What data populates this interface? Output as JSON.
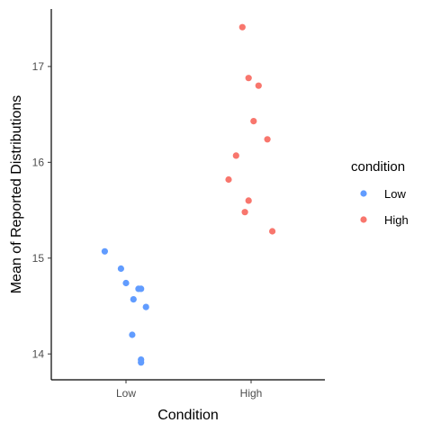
{
  "chart_data": {
    "type": "scatter",
    "xlabel": "Condition",
    "ylabel": "Mean of Reported Distributions",
    "categories": [
      "Low",
      "High"
    ],
    "ylim": [
      13.73,
      17.6
    ],
    "yticks": [
      "14",
      "15",
      "16",
      "17"
    ],
    "grid": false,
    "legend": {
      "title": "condition",
      "placement": "right",
      "entries": [
        "Low",
        "High"
      ]
    },
    "colors": {
      "Low": "#619CFF",
      "High": "#F8766D"
    },
    "series": [
      {
        "name": "Low",
        "x": [
          "Low",
          "Low",
          "Low",
          "Low",
          "Low",
          "Low",
          "Low",
          "Low",
          "Low",
          "Low"
        ],
        "jitter": [
          -0.17,
          -0.04,
          0.0,
          0.1,
          0.12,
          0.06,
          0.16,
          0.05,
          0.12,
          0.12
        ],
        "y": [
          15.07,
          14.89,
          14.74,
          14.68,
          14.68,
          14.57,
          14.49,
          14.2,
          13.94,
          13.91
        ]
      },
      {
        "name": "High",
        "x": [
          "High",
          "High",
          "High",
          "High",
          "High",
          "High",
          "High",
          "High",
          "High",
          "High"
        ],
        "jitter": [
          -0.07,
          -0.02,
          0.06,
          0.02,
          0.13,
          -0.12,
          -0.18,
          -0.02,
          -0.05,
          0.17
        ],
        "y": [
          17.41,
          16.88,
          16.8,
          16.43,
          16.24,
          16.07,
          15.82,
          15.6,
          15.48,
          15.28
        ]
      }
    ]
  }
}
